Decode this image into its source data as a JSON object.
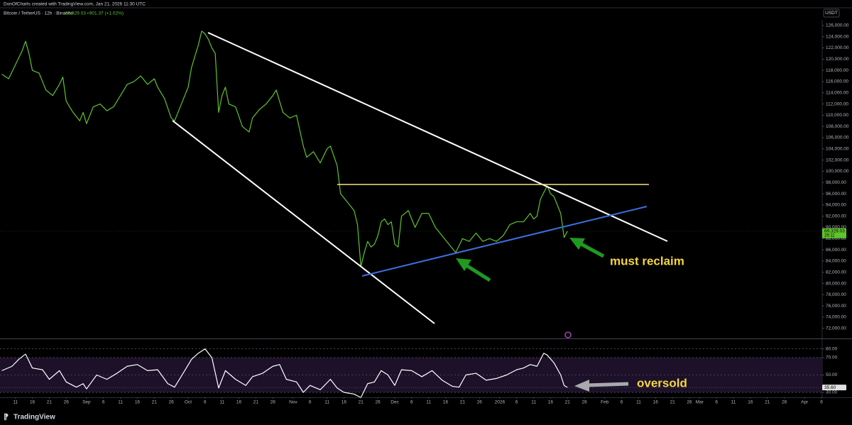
{
  "header": {
    "credit": "DonOfCharts created with TradingView.com, Jan 21, 2026 11:30 UTC",
    "symbol": "Bitcoin / TetherUS · 12h · Binance",
    "price": "89,329.03",
    "change": "+901.37 (+1.02%)",
    "currency": "USDT",
    "brand": "TradingView"
  },
  "chart_data": [
    {
      "type": "line",
      "grid": false,
      "xlim": [
        5.45,
        248.2
      ],
      "ylim": [
        70200,
        127000
      ],
      "x": [
        6,
        8,
        10,
        12,
        13,
        14,
        15,
        17,
        19,
        21,
        23,
        24,
        25,
        27,
        29,
        30,
        31,
        33,
        35,
        37,
        39,
        41,
        43,
        45,
        47,
        49,
        51,
        52,
        54,
        56,
        57,
        59,
        61,
        62,
        64,
        65,
        66,
        67,
        68,
        69,
        70,
        71,
        72,
        73,
        75,
        77,
        79,
        80,
        82,
        84,
        86,
        87,
        89,
        91,
        93,
        95,
        96,
        98,
        100,
        102,
        103,
        105,
        106,
        108,
        110,
        111,
        112,
        113,
        114,
        115,
        116,
        117,
        118,
        119,
        120,
        121,
        122,
        123,
        124,
        126,
        128,
        130,
        132,
        134,
        136,
        138,
        140,
        142,
        144,
        146,
        148,
        150,
        152,
        154,
        156,
        158,
        160,
        162,
        163,
        164,
        165,
        167,
        168,
        169,
        170,
        171,
        172,
        173
      ],
      "series": [
        {
          "name": "Bitcoin / TetherUS · 12h · Binance",
          "color": "#5ec42b",
          "values": [
            117300,
            116500,
            119000,
            121500,
            123200,
            121000,
            118000,
            117500,
            114500,
            113500,
            115500,
            116800,
            112500,
            110500,
            109000,
            110500,
            108500,
            111500,
            112000,
            110800,
            111500,
            113500,
            115500,
            116000,
            117000,
            115500,
            116500,
            115000,
            113000,
            109500,
            109000,
            112000,
            115000,
            118500,
            122500,
            125000,
            124500,
            123500,
            122000,
            121000,
            110500,
            113500,
            115000,
            112000,
            111500,
            108000,
            107000,
            109500,
            111000,
            112000,
            113500,
            114500,
            110500,
            109500,
            110000,
            104500,
            102500,
            103500,
            101500,
            104000,
            104500,
            101000,
            96000,
            94500,
            93000,
            90500,
            83000,
            85500,
            87500,
            86500,
            87000,
            88500,
            91000,
            91500,
            90500,
            91000,
            87000,
            86500,
            92000,
            93000,
            90000,
            92500,
            92500,
            90000,
            88500,
            87000,
            85500,
            88000,
            87500,
            89000,
            87500,
            88000,
            87500,
            88500,
            90500,
            91000,
            91000,
            92500,
            91500,
            92000,
            95000,
            97400,
            96000,
            95500,
            94000,
            92500,
            88200,
            89329.03
          ]
        }
      ],
      "current_value": {
        "value": 89329.03,
        "label": "89,329.03"
      },
      "countdown": "29:11",
      "annotations": [
        "must reclaim"
      ],
      "yticks": [
        {
          "value": 72000,
          "label": "72,000.00"
        },
        {
          "value": 74000,
          "label": "74,000.00"
        },
        {
          "value": 76000,
          "label": "76,000.00"
        },
        {
          "value": 78000,
          "label": "78,000.00"
        },
        {
          "value": 80000,
          "label": "80,000.00"
        },
        {
          "value": 82000,
          "label": "82,000.00"
        },
        {
          "value": 84000,
          "label": "84,000.00"
        },
        {
          "value": 86000,
          "label": "86,000.00"
        },
        {
          "value": 88000,
          "label": "88,000.00"
        },
        {
          "value": 90000,
          "label": "90,000.00"
        },
        {
          "value": 92000,
          "label": "92,000.00"
        },
        {
          "value": 94000,
          "label": "94,000.00"
        },
        {
          "value": 96000,
          "label": "96,000.00"
        },
        {
          "value": 98000,
          "label": "98,000.00"
        },
        {
          "value": 100000,
          "label": "100,000.00"
        },
        {
          "value": 102000,
          "label": "102,000.00"
        },
        {
          "value": 104000,
          "label": "104,000.00"
        },
        {
          "value": 106000,
          "label": "106,000.00"
        },
        {
          "value": 108000,
          "label": "108,000.00"
        },
        {
          "value": 110000,
          "label": "110,000.00"
        },
        {
          "value": 112000,
          "label": "112,000.00"
        },
        {
          "value": 114000,
          "label": "114,000.00"
        },
        {
          "value": 116000,
          "label": "116,000.00"
        },
        {
          "value": 118000,
          "label": "118,000.00"
        },
        {
          "value": 120000,
          "label": "120,000.00"
        },
        {
          "value": 122000,
          "label": "122,000.00"
        },
        {
          "value": 124000,
          "label": "124,000.00"
        },
        {
          "value": 126000,
          "label": "126,000.00"
        }
      ],
      "xticks": [
        {
          "value": 10,
          "label": "11"
        },
        {
          "value": 15,
          "label": "16"
        },
        {
          "value": 20,
          "label": "21"
        },
        {
          "value": 25,
          "label": "26"
        },
        {
          "value": 31,
          "label": "Sep"
        },
        {
          "value": 36,
          "label": "6"
        },
        {
          "value": 41,
          "label": "11"
        },
        {
          "value": 46,
          "label": "16"
        },
        {
          "value": 51,
          "label": "21"
        },
        {
          "value": 56,
          "label": "26"
        },
        {
          "value": 61,
          "label": "Oct"
        },
        {
          "value": 66,
          "label": "6"
        },
        {
          "value": 71,
          "label": "11"
        },
        {
          "value": 76,
          "label": "16"
        },
        {
          "value": 81,
          "label": "21"
        },
        {
          "value": 86,
          "label": "26"
        },
        {
          "value": 92,
          "label": "Nov"
        },
        {
          "value": 97,
          "label": "6"
        },
        {
          "value": 102,
          "label": "11"
        },
        {
          "value": 107,
          "label": "16"
        },
        {
          "value": 112,
          "label": "21"
        },
        {
          "value": 117,
          "label": "26"
        },
        {
          "value": 122,
          "label": "Dec"
        },
        {
          "value": 127,
          "label": "6"
        },
        {
          "value": 132,
          "label": "11"
        },
        {
          "value": 137,
          "label": "16"
        },
        {
          "value": 142,
          "label": "21"
        },
        {
          "value": 147,
          "label": "26"
        },
        {
          "value": 153,
          "label": "2026"
        },
        {
          "value": 158,
          "label": "6"
        },
        {
          "value": 163,
          "label": "11"
        },
        {
          "value": 168,
          "label": "16"
        },
        {
          "value": 173,
          "label": "21"
        },
        {
          "value": 178,
          "label": "26"
        },
        {
          "value": 184,
          "label": "Feb"
        },
        {
          "value": 189,
          "label": "6"
        },
        {
          "value": 194,
          "label": "11"
        },
        {
          "value": 199,
          "label": "16"
        },
        {
          "value": 204,
          "label": "21"
        },
        {
          "value": 209,
          "label": "26"
        },
        {
          "value": 212,
          "label": "Mar"
        },
        {
          "value": 217,
          "label": "6"
        },
        {
          "value": 222,
          "label": "11"
        },
        {
          "value": 227,
          "label": "16"
        },
        {
          "value": 232,
          "label": "21"
        },
        {
          "value": 237,
          "label": "26"
        },
        {
          "value": 243,
          "label": "Apr"
        },
        {
          "value": 248,
          "label": "6"
        }
      ]
    },
    {
      "type": "line",
      "grid": true,
      "xlim": [
        5.45,
        248.2
      ],
      "ylim": [
        24.3,
        91.2
      ],
      "band": {
        "from": 30,
        "to": 70,
        "color": "#1c1129"
      },
      "x": [
        6,
        9,
        11,
        13,
        15,
        18,
        20,
        23,
        25,
        28,
        30,
        31,
        34,
        37,
        40,
        43,
        46,
        49,
        52,
        55,
        57,
        60,
        62,
        64,
        66,
        68,
        70,
        72,
        75,
        78,
        80,
        83,
        86,
        88,
        90,
        93,
        95,
        97,
        100,
        103,
        105,
        107,
        110,
        112,
        114,
        116,
        118,
        120,
        122,
        124,
        127,
        130,
        133,
        136,
        139,
        141,
        143,
        146,
        149,
        152,
        155,
        158,
        160,
        162,
        164,
        166,
        167,
        169,
        171,
        172,
        173
      ],
      "series": [
        {
          "color": "#ffffff",
          "values": [
            55,
            60,
            68,
            74,
            58,
            56,
            45,
            55,
            42,
            36,
            40,
            34,
            50,
            45,
            52,
            60,
            62,
            55,
            56,
            40,
            36,
            55,
            68,
            75,
            80,
            70,
            35,
            55,
            45,
            38,
            48,
            52,
            60,
            62,
            45,
            42,
            30,
            38,
            33,
            45,
            35,
            30,
            28,
            24,
            40,
            42,
            55,
            50,
            38,
            56,
            55,
            48,
            55,
            44,
            37,
            36,
            50,
            52,
            44,
            46,
            50,
            56,
            58,
            62,
            60,
            75,
            73,
            64,
            50,
            38,
            35.6
          ]
        }
      ],
      "current_value": {
        "value": 35.6,
        "label": "35.60"
      },
      "annotations": [
        "oversold"
      ],
      "yticks": [
        {
          "value": 30,
          "label": "30.00"
        },
        {
          "value": 50,
          "label": "50.00"
        },
        {
          "value": 70,
          "label": "70.00"
        },
        {
          "value": 80,
          "label": "80.00"
        }
      ]
    }
  ]
}
